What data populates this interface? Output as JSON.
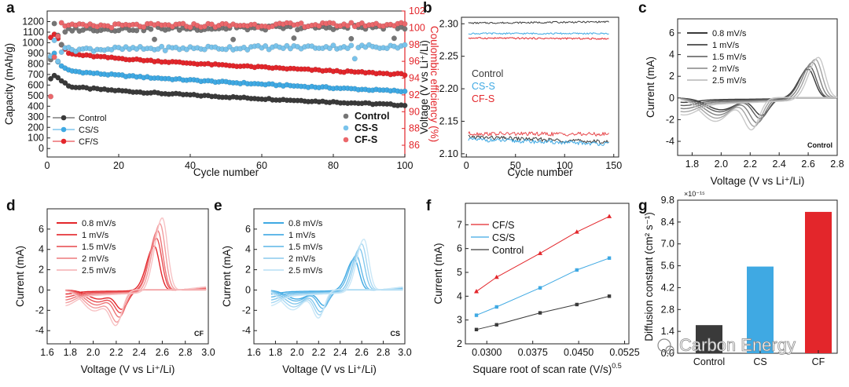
{
  "colors": {
    "control": "#3a3a3a",
    "cs": "#3fa9e3",
    "cf": "#e3262b",
    "axis": "#222222",
    "ce_axis": "#e3262b"
  },
  "watermark": "Carbon Energy",
  "chart_data": [
    {
      "id": "a",
      "panel_label": "a",
      "type": "scatter",
      "xlabel": "Cycle number",
      "ylabel": "Capacity (mAh/g)",
      "y2label": "Coulombic efficiency (%)",
      "xlim": [
        0,
        100
      ],
      "ylim": [
        -80,
        1300
      ],
      "y2lim": [
        84.6,
        102
      ],
      "xticks": [
        "0",
        "20",
        "40",
        "60",
        "80",
        "100"
      ],
      "yticks": [
        "0",
        "100",
        "200",
        "300",
        "400",
        "500",
        "600",
        "700",
        "800",
        "900",
        "1000",
        "1100",
        "1200"
      ],
      "y2ticks": [
        "86",
        "88",
        "90",
        "92",
        "94",
        "96",
        "98",
        "100",
        "102"
      ],
      "legend_capacity": [
        "Control",
        "CS/S",
        "CF/S"
      ],
      "legend_ce": [
        "Control",
        "CS-S",
        "CF-S"
      ],
      "series": [
        {
          "name": "Control",
          "axis": "capacity",
          "start": 680,
          "end": 410,
          "x_knee": 6,
          "y_knee": 590,
          "first": [
            660,
            690,
            670,
            640,
            620
          ]
        },
        {
          "name": "CS/S",
          "axis": "capacity",
          "start": 900,
          "end": 540,
          "x_knee": 6,
          "y_knee": 740,
          "first": [
            860,
            900,
            820,
            780,
            760
          ]
        },
        {
          "name": "CF/S",
          "axis": "capacity",
          "start": 1000,
          "end": 700,
          "x_knee": 6,
          "y_knee": 900,
          "first": [
            1050,
            1080,
            1040,
            980,
            940
          ]
        },
        {
          "name": "Control",
          "axis": "ce",
          "start": 99.8,
          "end": 100.1,
          "first": [
            96.2,
            100.5,
            99.1,
            98.0,
            99.5
          ]
        },
        {
          "name": "CS-S",
          "axis": "ce",
          "start": 97.4,
          "end": 97.8,
          "first": [
            96.6,
            98.5,
            96.0,
            97.1,
            97.6
          ]
        },
        {
          "name": "CF-S",
          "axis": "ce",
          "start": 100.2,
          "end": 100.4,
          "first": [
            91.8,
            96.5,
            99.0,
            100.6,
            100.2
          ]
        }
      ]
    },
    {
      "id": "b",
      "panel_label": "b",
      "type": "line",
      "xlabel": "Cycle number",
      "ylabel": "Voltage (V vs Li⁺/Li)",
      "xlim": [
        -5,
        155
      ],
      "ylim": [
        2.095,
        2.31
      ],
      "xticks": [
        "0",
        "50",
        "100",
        "150"
      ],
      "yticks": [
        "2.10",
        "2.15",
        "2.20",
        "2.25",
        "2.30"
      ],
      "legend": [
        "Control",
        "CS-S",
        "CF-S"
      ],
      "series": [
        {
          "name": "Control charge",
          "start": 2.301,
          "end": 2.303
        },
        {
          "name": "CS-S charge",
          "start": 2.285,
          "end": 2.285
        },
        {
          "name": "CF-S charge",
          "start": 2.278,
          "end": 2.277
        },
        {
          "name": "Control discharge",
          "start": 2.126,
          "end": 2.118
        },
        {
          "name": "CS-S discharge",
          "start": 2.122,
          "end": 2.115
        },
        {
          "name": "CF-S discharge",
          "start": 2.131,
          "end": 2.13
        }
      ]
    },
    {
      "id": "c",
      "panel_label": "c",
      "type": "line",
      "xlabel": "Voltage (V vs Li⁺/Li)",
      "ylabel": "Current (mA)",
      "xlim": [
        1.7,
        2.8
      ],
      "ylim": [
        -5.3,
        7.3
      ],
      "xticks": [
        "1.8",
        "2.0",
        "2.2",
        "2.4",
        "2.6",
        "2.8"
      ],
      "yticks": [
        "-4",
        "-2",
        "0",
        "2",
        "4",
        "6"
      ],
      "legend": [
        "0.8 mV/s",
        "1 mV/s",
        "1.5 mV/s",
        "2 mV/s",
        "2.5 mV/s"
      ],
      "annotation": "Control",
      "series": [
        {
          "rate": "0.8 mV/s",
          "peak_ox": 2.6,
          "ipa": 2.7,
          "peak_red1": 2.0,
          "ipc1": -1.1,
          "peak_red2": 2.28,
          "ipc2": -1.6
        },
        {
          "rate": "1 mV/s",
          "peak_ox": 2.61,
          "ipa": 3.0,
          "peak_red1": 1.99,
          "ipc1": -1.3,
          "peak_red2": 2.27,
          "ipc2": -1.9
        },
        {
          "rate": "1.5 mV/s",
          "peak_ox": 2.63,
          "ipa": 3.4,
          "peak_red1": 1.98,
          "ipc1": -1.6,
          "peak_red2": 2.25,
          "ipc2": -2.3
        },
        {
          "rate": "2 mV/s",
          "peak_ox": 2.65,
          "ipa": 3.7,
          "peak_red1": 1.97,
          "ipc1": -1.9,
          "peak_red2": 2.23,
          "ipc2": -2.6
        },
        {
          "rate": "2.5 mV/s",
          "peak_ox": 2.67,
          "ipa": 3.9,
          "peak_red1": 1.96,
          "ipc1": -2.2,
          "peak_red2": 2.21,
          "ipc2": -2.9
        }
      ]
    },
    {
      "id": "d",
      "panel_label": "d",
      "type": "line",
      "xlabel": "Voltage (V vs Li⁺/Li)",
      "ylabel": "Current (mA)",
      "xlim": [
        1.6,
        3.0
      ],
      "ylim": [
        -5.3,
        8.0
      ],
      "xticks": [
        "1.6",
        "1.8",
        "2.0",
        "2.2",
        "2.4",
        "2.6",
        "2.8",
        "3.0"
      ],
      "yticks": [
        "-4",
        "-2",
        "0",
        "2",
        "4",
        "6"
      ],
      "legend": [
        "0.8 mV/s",
        "1 mV/s",
        "1.5 mV/s",
        "2 mV/s",
        "2.5 mV/s"
      ],
      "annotation": "CF",
      "series": [
        {
          "rate": "0.8 mV/s",
          "peak_ox": 2.53,
          "ipa": 4.4,
          "peak_red1": 2.05,
          "ipc1": -0.9,
          "peak_red2": 2.25,
          "ipc2": -1.8
        },
        {
          "rate": "1 mV/s",
          "peak_ox": 2.55,
          "ipa": 5.2,
          "peak_red1": 2.04,
          "ipc1": -1.2,
          "peak_red2": 2.24,
          "ipc2": -2.1
        },
        {
          "rate": "1.5 mV/s",
          "peak_ox": 2.56,
          "ipa": 6.0,
          "peak_red1": 2.03,
          "ipc1": -1.5,
          "peak_red2": 2.23,
          "ipc2": -2.5
        },
        {
          "rate": "2 mV/s",
          "peak_ox": 2.58,
          "ipa": 6.7,
          "peak_red1": 2.02,
          "ipc1": -1.8,
          "peak_red2": 2.21,
          "ipc2": -2.9
        },
        {
          "rate": "2.5 mV/s",
          "peak_ox": 2.6,
          "ipa": 7.3,
          "peak_red1": 2.01,
          "ipc1": -2.1,
          "peak_red2": 2.2,
          "ipc2": -3.2
        }
      ]
    },
    {
      "id": "e",
      "panel_label": "e",
      "type": "line",
      "xlabel": "Voltage (V vs Li⁺/Li)",
      "ylabel": "Current (mA)",
      "xlim": [
        1.6,
        3.0
      ],
      "ylim": [
        -5.3,
        8.0
      ],
      "xticks": [
        "1.6",
        "1.8",
        "2.0",
        "2.2",
        "2.4",
        "2.6",
        "2.8",
        "3.0"
      ],
      "yticks": [
        "-4",
        "-2",
        "0",
        "2",
        "4",
        "6"
      ],
      "legend": [
        "0.8 mV/s",
        "1 mV/s",
        "1.5 mV/s",
        "2 mV/s",
        "2.5 mV/s"
      ],
      "annotation": "CS",
      "series": [
        {
          "rate": "0.8 mV/s",
          "peak_ox": 2.53,
          "ipa": 3.1,
          "peak_red1": 2.0,
          "ipc1": -0.9,
          "peak_red2": 2.25,
          "ipc2": -1.5
        },
        {
          "rate": "1 mV/s",
          "peak_ox": 2.55,
          "ipa": 3.5,
          "peak_red1": 1.99,
          "ipc1": -1.1,
          "peak_red2": 2.24,
          "ipc2": -1.8
        },
        {
          "rate": "1.5 mV/s",
          "peak_ox": 2.58,
          "ipa": 4.2,
          "peak_red1": 1.98,
          "ipc1": -1.4,
          "peak_red2": 2.22,
          "ipc2": -2.1
        },
        {
          "rate": "2 mV/s",
          "peak_ox": 2.6,
          "ipa": 4.7,
          "peak_red1": 1.97,
          "ipc1": -1.7,
          "peak_red2": 2.21,
          "ipc2": -2.4
        },
        {
          "rate": "2.5 mV/s",
          "peak_ox": 2.62,
          "ipa": 5.2,
          "peak_red1": 1.96,
          "ipc1": -2.0,
          "peak_red2": 2.2,
          "ipc2": -2.7
        }
      ]
    },
    {
      "id": "f",
      "panel_label": "f",
      "type": "line",
      "xlabel": "Square root of scan rate (V/s)",
      "xlabel_exp": "0.5",
      "ylabel": "Current (mA)",
      "xlim": [
        0.0265,
        0.0532
      ],
      "ylim": [
        2.0,
        7.9
      ],
      "xticks": [
        "0.0300",
        "0.0375",
        "0.0450",
        "0.0525"
      ],
      "xtick_values": [
        0.03,
        0.0375,
        0.045,
        0.0525
      ],
      "yticks": [
        "2",
        "3",
        "4",
        "5",
        "6",
        "7"
      ],
      "x": [
        0.0283,
        0.0316,
        0.0387,
        0.0447,
        0.05
      ],
      "legend": [
        "CF/S",
        "CS/S",
        "Control"
      ],
      "series": [
        {
          "name": "CF/S",
          "values": [
            4.2,
            4.8,
            5.8,
            6.7,
            7.35
          ]
        },
        {
          "name": "CS/S",
          "values": [
            3.2,
            3.55,
            4.35,
            5.1,
            5.6
          ]
        },
        {
          "name": "Control",
          "values": [
            2.6,
            2.8,
            3.3,
            3.65,
            4.0
          ]
        }
      ]
    },
    {
      "id": "g",
      "panel_label": "g",
      "type": "bar",
      "ylabel": "Diffusion constant (cm² s⁻¹)",
      "y_multiplier": "×10⁻¹⁵",
      "categories": [
        "Control",
        "CS",
        "CF"
      ],
      "values": [
        1.8,
        5.55,
        9.05
      ],
      "ylim": [
        0,
        9.8
      ],
      "yticks": [
        "0.0",
        "1.4",
        "2.8",
        "4.2",
        "5.6",
        "7.0",
        "8.4",
        "9.8"
      ],
      "bar_colors": [
        "#3a3a3a",
        "#3fa9e3",
        "#e3262b"
      ]
    }
  ]
}
